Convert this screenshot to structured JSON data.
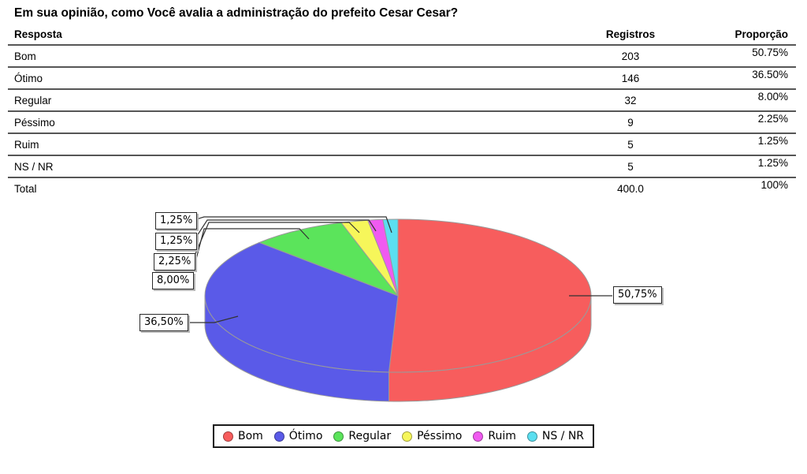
{
  "page": {
    "title": "Em sua opinião, como Você avalia a administração do prefeito Cesar Cesar?"
  },
  "table": {
    "headers": [
      "Resposta",
      "Registros",
      "Proporção"
    ],
    "rows": [
      {
        "resposta": "Bom",
        "registros": "203",
        "proporcao": "50.75%"
      },
      {
        "resposta": "Ótimo",
        "registros": "146",
        "proporcao": "36.50%"
      },
      {
        "resposta": "Regular",
        "registros": "32",
        "proporcao": "8.00%"
      },
      {
        "resposta": "Péssimo",
        "registros": "9",
        "proporcao": "2.25%"
      },
      {
        "resposta": "Ruim",
        "registros": "5",
        "proporcao": "1.25%"
      },
      {
        "resposta": "NS / NR",
        "registros": "5",
        "proporcao": "1.25%"
      },
      {
        "resposta": "Total",
        "registros": "400.0",
        "proporcao": "100%"
      }
    ]
  },
  "chart_data": {
    "type": "pie",
    "style": "3d",
    "title": "Em sua opinião, como Você avalia a administração do prefeito Cesar Cesar?",
    "start_angle_deg": 90,
    "direction": "clockwise",
    "categories": [
      "Bom",
      "Ótimo",
      "Regular",
      "Péssimo",
      "Ruim",
      "NS / NR"
    ],
    "values": [
      203,
      146,
      32,
      9,
      5,
      5
    ],
    "percentages": [
      50.75,
      36.5,
      8.0,
      2.25,
      1.25,
      1.25
    ],
    "percent_labels": [
      "50,75%",
      "36,50%",
      "8,00%",
      "2,25%",
      "1,25%",
      "1,25%"
    ],
    "colors": [
      "#f75d5d",
      "#5a5ae8",
      "#5be45b",
      "#f6f65a",
      "#f05af0",
      "#5bdff0"
    ],
    "total": 400.0,
    "legend_position": "bottom"
  },
  "legend": {
    "items": [
      {
        "label": "Bom",
        "color": "#f75d5d"
      },
      {
        "label": "Ótimo",
        "color": "#5a5ae8"
      },
      {
        "label": "Regular",
        "color": "#5be45b"
      },
      {
        "label": "Péssimo",
        "color": "#f6f65a"
      },
      {
        "label": "Ruim",
        "color": "#f05af0"
      },
      {
        "label": "NS / NR",
        "color": "#5bdff0"
      }
    ]
  }
}
